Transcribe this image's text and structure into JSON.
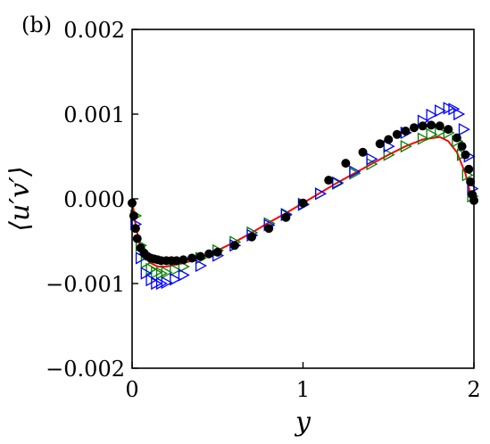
{
  "chart_data": {
    "type": "scatter",
    "panel_label": "(b)",
    "xlabel": "y",
    "ylabel": "⟨u′v′⟩",
    "xlim": [
      0,
      2
    ],
    "ylim": [
      -0.002,
      0.002
    ],
    "x_ticks": [
      0,
      1,
      2
    ],
    "x_tick_labels": [
      "0",
      "1",
      "2"
    ],
    "y_ticks": [
      -0.002,
      -0.001,
      0.0,
      0.001,
      0.002
    ],
    "y_tick_labels": [
      "−0.002",
      "−0.001",
      "0.000",
      "0.001",
      "0.002"
    ],
    "grid": false,
    "legend": "none",
    "series": [
      {
        "style": "line",
        "color": "#ff0000",
        "x": [
          0.0,
          0.02,
          0.05,
          0.1,
          0.15,
          0.2,
          0.3,
          0.4,
          0.5,
          0.6,
          0.7,
          0.8,
          0.9,
          1.0,
          1.1,
          1.2,
          1.3,
          1.4,
          1.5,
          1.6,
          1.7,
          1.8,
          1.85,
          1.9,
          1.95,
          1.98,
          2.0
        ],
        "y": [
          0.0,
          -0.0003,
          -0.0006,
          -0.00075,
          -0.0008,
          -0.0008,
          -0.00076,
          -0.0007,
          -0.00061,
          -0.00051,
          -0.0004,
          -0.00028,
          -0.00017,
          -5e-05,
          7e-05,
          0.00019,
          0.0003,
          0.00041,
          0.00052,
          0.00062,
          0.0007,
          0.00073,
          0.00068,
          0.00055,
          0.0003,
          5e-05,
          0.0
        ]
      },
      {
        "style": "marker",
        "marker": "triangle-right",
        "color": "#008000",
        "x": [
          0.02,
          0.05,
          0.08,
          0.11,
          0.14,
          0.17,
          0.2,
          0.25,
          0.3,
          0.4,
          0.5,
          0.6,
          0.7,
          0.8,
          0.9,
          1.0,
          1.1,
          1.2,
          1.3,
          1.4,
          1.5,
          1.6,
          1.7,
          1.75,
          1.8,
          1.85,
          1.9,
          1.93,
          1.96,
          1.99
        ],
        "y": [
          -0.0002,
          -0.00055,
          -0.00075,
          -0.00083,
          -0.00087,
          -0.00088,
          -0.00087,
          -0.00084,
          -0.0008,
          -0.0007,
          -0.00061,
          -0.00051,
          -0.0004,
          -0.00029,
          -0.00018,
          -6e-05,
          6e-05,
          0.00018,
          0.0003,
          0.00041,
          0.00052,
          0.00062,
          0.00071,
          0.00076,
          0.00079,
          0.00078,
          0.00068,
          0.00052,
          0.00028,
          3e-05
        ]
      },
      {
        "style": "marker",
        "marker": "triangle-right",
        "color": "#0000ff",
        "x": [
          0.02,
          0.05,
          0.08,
          0.11,
          0.14,
          0.17,
          0.2,
          0.25,
          0.3,
          0.4,
          0.5,
          0.6,
          0.7,
          0.8,
          0.9,
          1.0,
          1.1,
          1.2,
          1.3,
          1.4,
          1.5,
          1.6,
          1.7,
          1.75,
          1.8,
          1.85,
          1.88,
          1.91,
          1.94,
          1.97,
          1.99
        ],
        "y": [
          -0.0003,
          -0.0007,
          -0.00088,
          -0.00096,
          -0.001,
          -0.001,
          -0.00099,
          -0.00095,
          -0.0009,
          -0.00079,
          -0.00067,
          -0.00055,
          -0.00043,
          -0.00031,
          -0.00019,
          -7e-05,
          6e-05,
          0.00019,
          0.00032,
          0.00047,
          0.00062,
          0.00078,
          0.00092,
          0.00099,
          0.00104,
          0.00107,
          0.00106,
          0.001,
          0.00082,
          0.0005,
          0.00012
        ]
      },
      {
        "style": "marker",
        "marker": "circle",
        "color": "#000000",
        "x": [
          0.0,
          0.01,
          0.02,
          0.03,
          0.05,
          0.07,
          0.09,
          0.11,
          0.13,
          0.15,
          0.17,
          0.2,
          0.23,
          0.26,
          0.3,
          0.35,
          0.4,
          0.45,
          0.5,
          0.6,
          0.7,
          0.8,
          0.9,
          1.0,
          1.15,
          1.25,
          1.35,
          1.45,
          1.5,
          1.55,
          1.6,
          1.65,
          1.7,
          1.75,
          1.8,
          1.85,
          1.9,
          1.93,
          1.95,
          1.97,
          1.98,
          1.99,
          2.0
        ],
        "y": [
          -5e-05,
          -0.0002,
          -0.00035,
          -0.00047,
          -0.00058,
          -0.00064,
          -0.00068,
          -0.0007,
          -0.00071,
          -0.00072,
          -0.00073,
          -0.00073,
          -0.00073,
          -0.00073,
          -0.00072,
          -0.0007,
          -0.00068,
          -0.00065,
          -0.00063,
          -0.00055,
          -0.00045,
          -0.00035,
          -0.00022,
          -5e-05,
          0.00022,
          0.00042,
          0.00055,
          0.00065,
          0.0007,
          0.00076,
          0.0008,
          0.00084,
          0.00086,
          0.00087,
          0.00086,
          0.00082,
          0.00072,
          0.00062,
          0.00052,
          0.00035,
          0.0002,
          5e-05,
          -2e-05
        ]
      }
    ]
  }
}
